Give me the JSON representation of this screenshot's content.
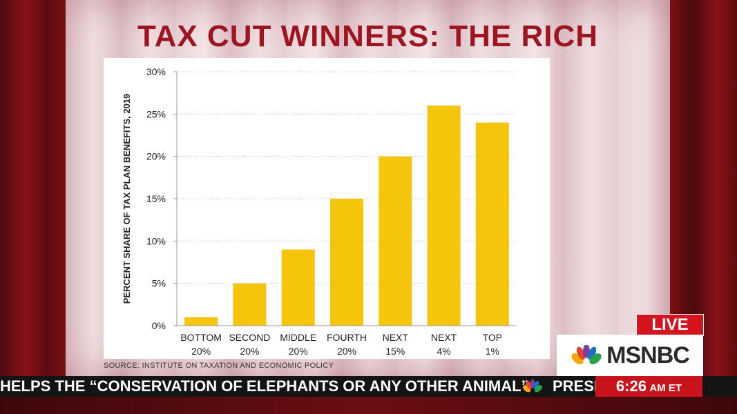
{
  "title": "TAX CUT WINNERS: THE RICH",
  "source_note": "SOURCE: INSTITUTE ON TAXATION AND ECONOMIC POLICY",
  "colors": {
    "bar": "#f5c50c",
    "title": "#9c1520",
    "live": "#d4141e"
  },
  "chart_data": {
    "type": "bar",
    "ylabel": "PERCENT SHARE OF TAX PLAN BENEFITS, 2019",
    "ylim": [
      0,
      30
    ],
    "yticks": [
      "0%",
      "5%",
      "10%",
      "15%",
      "20%",
      "25%",
      "30%"
    ],
    "grid": true,
    "categories": [
      [
        "BOTTOM",
        "20%"
      ],
      [
        "SECOND",
        "20%"
      ],
      [
        "MIDDLE",
        "20%"
      ],
      [
        "FOURTH",
        "20%"
      ],
      [
        "NEXT",
        "15%"
      ],
      [
        "NEXT",
        "4%"
      ],
      [
        "TOP",
        "1%"
      ]
    ],
    "values": [
      1,
      5,
      9,
      15,
      20,
      26,
      24
    ]
  },
  "overlay": {
    "live_label": "LIVE",
    "network": "MSNBC",
    "ticker": "HELPS THE “CONSERVATION OF ELEPHANTS OR ANY OTHER ANIMAL”",
    "ticker_next": "PRESI",
    "clock_time": "6:26",
    "clock_suffix": "AM ET",
    "logo_icon": "peacock-icon"
  }
}
